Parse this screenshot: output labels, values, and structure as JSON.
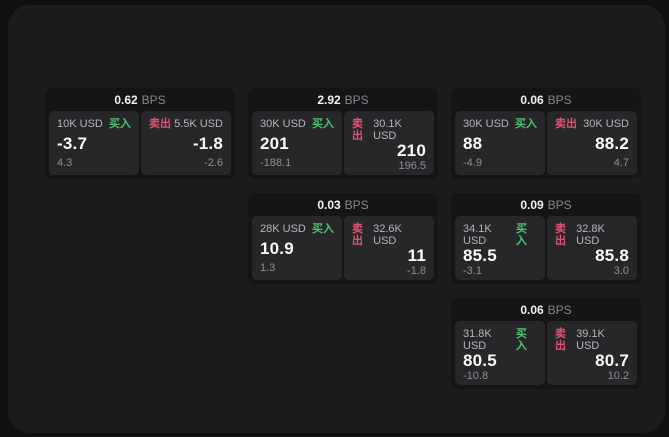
{
  "app": {
    "name": "quote-board"
  },
  "colors": {
    "buy_green": "#4cc273",
    "sell_red": "#df5370",
    "window_bg": "#1c1c1e",
    "card_bg": "#151517",
    "pane_bg": "#27272a"
  },
  "cards": [
    {
      "grid": {
        "row": 1,
        "col": 1
      },
      "bps": {
        "value": "0.62",
        "unit": "BPS"
      },
      "buy": {
        "amount": "10K USD",
        "label": "买入",
        "price": "-3.7",
        "change": "4.3"
      },
      "sell": {
        "label": "卖出",
        "amount": "5.5K USD",
        "price": "-1.8",
        "change": "-2.6"
      }
    },
    {
      "grid": {
        "row": 1,
        "col": 2
      },
      "bps": {
        "value": "2.92",
        "unit": "BPS"
      },
      "buy": {
        "amount": "30K USD",
        "label": "买入",
        "price": "201",
        "change": "-188.1"
      },
      "sell": {
        "label": "卖出",
        "amount": "30.1K USD",
        "price": "210",
        "change": "196.5"
      }
    },
    {
      "grid": {
        "row": 1,
        "col": 3
      },
      "bps": {
        "value": "0.06",
        "unit": "BPS"
      },
      "buy": {
        "amount": "30K USD",
        "label": "买入",
        "price": "88",
        "change": "-4.9"
      },
      "sell": {
        "label": "卖出",
        "amount": "30K USD",
        "price": "88.2",
        "change": "4.7"
      }
    },
    {
      "grid": {
        "row": 2,
        "col": 2
      },
      "bps": {
        "value": "0.03",
        "unit": "BPS"
      },
      "buy": {
        "amount": "28K USD",
        "label": "买入",
        "price": "10.9",
        "change": "1.3"
      },
      "sell": {
        "label": "卖出",
        "amount": "32.6K USD",
        "price": "11",
        "change": "-1.8"
      }
    },
    {
      "grid": {
        "row": 2,
        "col": 3
      },
      "bps": {
        "value": "0.09",
        "unit": "BPS"
      },
      "buy": {
        "amount": "34.1K USD",
        "label": "买入",
        "price": "85.5",
        "change": "-3.1"
      },
      "sell": {
        "label": "卖出",
        "amount": "32.8K USD",
        "price": "85.8",
        "change": "3.0"
      }
    },
    {
      "grid": {
        "row": 3,
        "col": 3
      },
      "bps": {
        "value": "0.06",
        "unit": "BPS"
      },
      "buy": {
        "amount": "31.8K USD",
        "label": "买入",
        "price": "80.5",
        "change": "-10.8"
      },
      "sell": {
        "label": "卖出",
        "amount": "39.1K USD",
        "price": "80.7",
        "change": "10.2"
      }
    }
  ]
}
